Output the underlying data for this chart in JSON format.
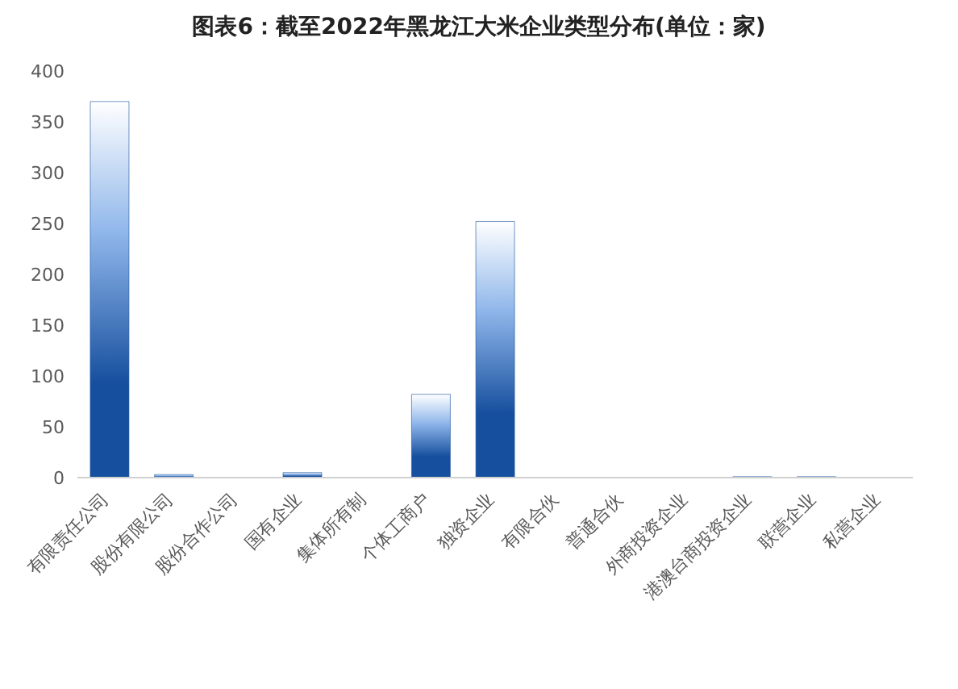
{
  "chart_data": {
    "type": "bar",
    "title": "图表6：截至2022年黑龙江大米企业类型分布(单位：家)",
    "categories": [
      "有限责任公司",
      "股份有限公司",
      "股份合作公司",
      "国有企业",
      "集体所有制",
      "个体工商户",
      "独资企业",
      "有限合伙",
      "普通合伙",
      "外商投资企业",
      "港澳台商投资企业",
      "联营企业",
      "私营企业"
    ],
    "values": [
      370,
      3,
      0,
      5,
      0,
      82,
      252,
      0,
      0,
      0,
      1,
      1,
      0
    ],
    "color": "#164f9e",
    "ylim": [
      0,
      400
    ],
    "yticks": [
      0,
      50,
      100,
      150,
      200,
      250,
      300,
      350,
      400
    ],
    "grid": false,
    "legend": false
  }
}
